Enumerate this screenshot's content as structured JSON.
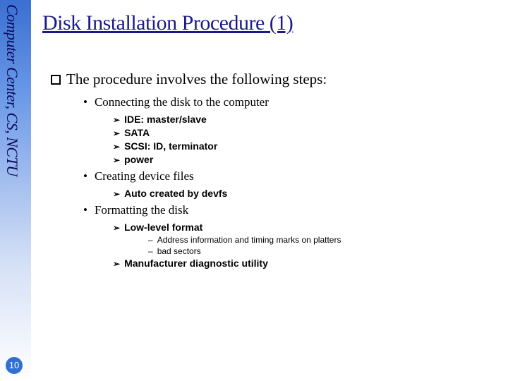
{
  "sidebar": {
    "text": "Computer Center, CS, NCTU",
    "color_top": "#3b6fd1",
    "text_color": "#0a0a5a"
  },
  "page_number": "10",
  "title": "Disk Installation Procedure (1)",
  "title_color": "#1a1a8a",
  "intro": "The procedure involves the following steps:",
  "items": {
    "connecting": {
      "label": "Connecting the disk to the computer",
      "sub": {
        "ide": "IDE: master/slave",
        "sata": "SATA",
        "scsi": "SCSI: ID, terminator",
        "power": "power"
      }
    },
    "creating": {
      "label": "Creating device files",
      "sub": {
        "devfs": "Auto created by devfs"
      }
    },
    "formatting": {
      "label": "Formatting the disk",
      "sub": {
        "lowlevel": "Low-level format",
        "lowlevel_notes": {
          "addr": "Address information and timing marks on platters",
          "bad": "bad sectors"
        },
        "mfg": "Manufacturer diagnostic utility"
      }
    }
  }
}
